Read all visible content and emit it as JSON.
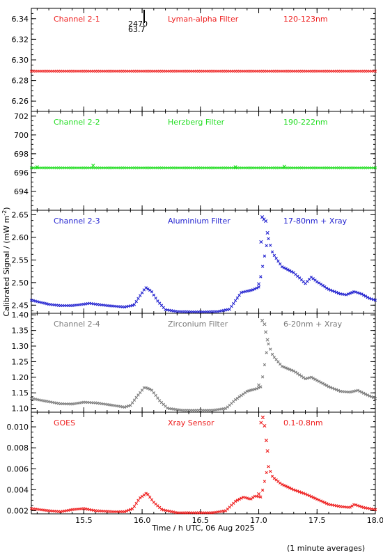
{
  "colors": {
    "red": "#ee1c1c",
    "green": "#22dd22",
    "blue": "#1f1fcf",
    "grey": "#7a7a7a",
    "axis": "#000000"
  },
  "xlabel": "Time / h UTC, 06 Aug 2025",
  "ylabel": "Calibrated Signal / (mW m",
  "ylabel_sup": "-2",
  "ylabel_close": ")",
  "footnote": "(1 minute averages)",
  "annotation": {
    "top": "2470",
    "bottom": "63.7"
  },
  "chart_data": [
    {
      "type": "scatter",
      "channel": "Channel 2-1",
      "filter": "Lyman-alpha Filter",
      "band": "120-123nm",
      "color": "#ee1c1c",
      "xlim": [
        15.05,
        18.0
      ],
      "ylim": [
        6.25,
        6.35
      ],
      "yticks": [
        6.26,
        6.28,
        6.3,
        6.32,
        6.34
      ],
      "ytick_labels": [
        "6.26",
        "6.28",
        "6.30",
        "6.32",
        "6.34"
      ],
      "xticks": [
        15.5,
        16.0,
        16.5,
        17.0,
        17.5,
        18.0
      ],
      "profile": [
        [
          15.05,
          6.289
        ],
        [
          18.0,
          6.289
        ]
      ],
      "spikes": []
    },
    {
      "type": "scatter",
      "channel": "Channel 2-2",
      "filter": "Herzberg Filter",
      "band": "190-222nm",
      "color": "#22dd22",
      "xlim": [
        15.05,
        18.0
      ],
      "ylim": [
        692.0,
        702.5
      ],
      "yticks": [
        694,
        696,
        698,
        700,
        702
      ],
      "ytick_labels": [
        "694",
        "696",
        "698",
        "700",
        "702"
      ],
      "xticks": [
        15.5,
        16.0,
        16.5,
        17.0,
        17.5,
        18.0
      ],
      "profile": [
        [
          15.05,
          696.5
        ],
        [
          18.0,
          696.5
        ]
      ],
      "spikes": [
        [
          15.1,
          696.6
        ],
        [
          15.58,
          696.75
        ],
        [
          16.8,
          696.6
        ],
        [
          17.22,
          696.65
        ]
      ]
    },
    {
      "type": "scatter",
      "channel": "Channel 2-3",
      "filter": "Aluminium Filter",
      "band": "17-80nm + Xray",
      "color": "#1f1fcf",
      "xlim": [
        15.05,
        18.0
      ],
      "ylim": [
        2.432,
        2.66
      ],
      "yticks": [
        2.45,
        2.5,
        2.55,
        2.6,
        2.65
      ],
      "ytick_labels": [
        "2.45",
        "2.50",
        "2.55",
        "2.60",
        "2.65"
      ],
      "xticks": [
        15.5,
        16.0,
        16.5,
        17.0,
        17.5,
        18.0
      ],
      "profile": [
        [
          15.05,
          2.461
        ],
        [
          15.2,
          2.452
        ],
        [
          15.3,
          2.449
        ],
        [
          15.4,
          2.449
        ],
        [
          15.55,
          2.454
        ],
        [
          15.7,
          2.449
        ],
        [
          15.85,
          2.446
        ],
        [
          15.93,
          2.45
        ],
        [
          15.98,
          2.47
        ],
        [
          16.03,
          2.489
        ],
        [
          16.08,
          2.481
        ],
        [
          16.13,
          2.46
        ],
        [
          16.2,
          2.44
        ],
        [
          16.3,
          2.436
        ],
        [
          16.5,
          2.435
        ],
        [
          16.65,
          2.436
        ],
        [
          16.75,
          2.441
        ],
        [
          16.8,
          2.46
        ],
        [
          16.85,
          2.478
        ],
        [
          16.95,
          2.484
        ],
        [
          17.0,
          2.49
        ],
        [
          17.08,
          2.6
        ],
        [
          17.12,
          2.565
        ],
        [
          17.2,
          2.535
        ],
        [
          17.3,
          2.522
        ],
        [
          17.4,
          2.498
        ],
        [
          17.45,
          2.512
        ],
        [
          17.5,
          2.502
        ],
        [
          17.6,
          2.485
        ],
        [
          17.7,
          2.475
        ],
        [
          17.75,
          2.473
        ],
        [
          17.82,
          2.48
        ],
        [
          17.88,
          2.475
        ],
        [
          17.95,
          2.465
        ],
        [
          18.0,
          2.461
        ]
      ],
      "spikes": [
        [
          17.0,
          2.497
        ],
        [
          17.02,
          2.59
        ],
        [
          17.03,
          2.645
        ],
        [
          17.045,
          2.64
        ],
        [
          17.06,
          2.636
        ],
        [
          17.075,
          2.61
        ]
      ]
    },
    {
      "type": "scatter",
      "channel": "Channel 2-4",
      "filter": "Zirconium Filter",
      "band": "6-20nm + Xray",
      "color": "#7a7a7a",
      "xlim": [
        15.05,
        18.0
      ],
      "ylim": [
        1.088,
        1.405
      ],
      "yticks": [
        1.1,
        1.15,
        1.2,
        1.25,
        1.3,
        1.35,
        1.4
      ],
      "ytick_labels": [
        "1.10",
        "1.15",
        "1.20",
        "1.25",
        "1.30",
        "1.35",
        "1.40"
      ],
      "xticks": [
        15.5,
        16.0,
        16.5,
        17.0,
        17.5,
        18.0
      ],
      "profile": [
        [
          15.05,
          1.132
        ],
        [
          15.15,
          1.125
        ],
        [
          15.3,
          1.115
        ],
        [
          15.4,
          1.114
        ],
        [
          15.5,
          1.12
        ],
        [
          15.6,
          1.118
        ],
        [
          15.75,
          1.11
        ],
        [
          15.85,
          1.104
        ],
        [
          15.9,
          1.11
        ],
        [
          15.95,
          1.135
        ],
        [
          16.02,
          1.168
        ],
        [
          16.08,
          1.16
        ],
        [
          16.15,
          1.125
        ],
        [
          16.22,
          1.1
        ],
        [
          16.35,
          1.094
        ],
        [
          16.6,
          1.094
        ],
        [
          16.72,
          1.1
        ],
        [
          16.8,
          1.128
        ],
        [
          16.9,
          1.155
        ],
        [
          16.98,
          1.163
        ],
        [
          17.02,
          1.17
        ],
        [
          17.08,
          1.31
        ],
        [
          17.12,
          1.27
        ],
        [
          17.2,
          1.235
        ],
        [
          17.3,
          1.22
        ],
        [
          17.4,
          1.195
        ],
        [
          17.45,
          1.2
        ],
        [
          17.5,
          1.19
        ],
        [
          17.6,
          1.17
        ],
        [
          17.7,
          1.155
        ],
        [
          17.78,
          1.152
        ],
        [
          17.85,
          1.158
        ],
        [
          17.92,
          1.145
        ],
        [
          18.0,
          1.132
        ]
      ],
      "spikes": [
        [
          17.0,
          1.175
        ],
        [
          17.03,
          1.382
        ],
        [
          17.05,
          1.37
        ],
        [
          17.06,
          1.345
        ],
        [
          17.075,
          1.32
        ]
      ]
    },
    {
      "type": "scatter",
      "channel": "GOES",
      "filter": "Xray Sensor",
      "band": "0.1-0.8nm",
      "color": "#ee1c1c",
      "xlim": [
        15.05,
        18.0
      ],
      "ylim": [
        0.0017,
        0.0114
      ],
      "yticks": [
        0.002,
        0.004,
        0.006,
        0.008,
        0.01
      ],
      "ytick_labels": [
        "0.002",
        "0.004",
        "0.006",
        "0.008",
        "0.010"
      ],
      "xticks": [
        15.5,
        16.0,
        16.5,
        17.0,
        17.5,
        18.0
      ],
      "xtick_labels": [
        "15.5",
        "16.0",
        "16.5",
        "17.0",
        "17.5",
        "18.0"
      ],
      "profile": [
        [
          15.05,
          0.0022
        ],
        [
          15.2,
          0.002
        ],
        [
          15.3,
          0.0019
        ],
        [
          15.4,
          0.0021
        ],
        [
          15.5,
          0.0022
        ],
        [
          15.6,
          0.002
        ],
        [
          15.75,
          0.0019
        ],
        [
          15.85,
          0.0019
        ],
        [
          15.92,
          0.0022
        ],
        [
          15.98,
          0.0032
        ],
        [
          16.04,
          0.0037
        ],
        [
          16.1,
          0.0028
        ],
        [
          16.17,
          0.0021
        ],
        [
          16.3,
          0.0018
        ],
        [
          16.6,
          0.0018
        ],
        [
          16.72,
          0.002
        ],
        [
          16.8,
          0.0029
        ],
        [
          16.87,
          0.0033
        ],
        [
          16.93,
          0.0031
        ],
        [
          16.97,
          0.0034
        ],
        [
          17.02,
          0.0033
        ],
        [
          17.08,
          0.0063
        ],
        [
          17.12,
          0.0052
        ],
        [
          17.2,
          0.0045
        ],
        [
          17.3,
          0.004
        ],
        [
          17.4,
          0.0036
        ],
        [
          17.5,
          0.0031
        ],
        [
          17.6,
          0.0026
        ],
        [
          17.7,
          0.0024
        ],
        [
          17.78,
          0.0023
        ],
        [
          17.82,
          0.0026
        ],
        [
          17.9,
          0.0023
        ],
        [
          18.0,
          0.0021
        ]
      ],
      "spikes": [
        [
          17.0,
          0.0036
        ],
        [
          17.02,
          0.0104
        ],
        [
          17.035,
          0.0109
        ],
        [
          17.05,
          0.0101
        ],
        [
          17.065,
          0.0087
        ],
        [
          17.075,
          0.0077
        ]
      ]
    }
  ]
}
